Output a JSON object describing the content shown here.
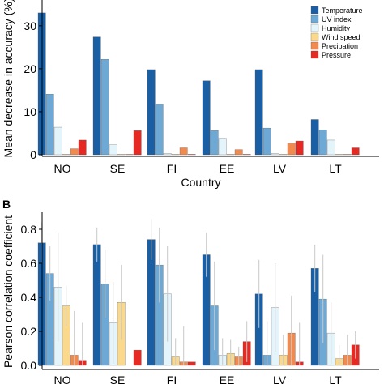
{
  "colors": {
    "Temperature": "#1a5fa3",
    "UV index": "#6ea9d5",
    "Humidity": "#e3f4fb",
    "Wind speed": "#fbd98c",
    "Precipation": "#f08a4f",
    "Pressure": "#e42a22"
  },
  "chart_data": [
    {
      "type": "bar",
      "panel": "",
      "categories": [
        "NO",
        "SE",
        "FI",
        "EE",
        "LV",
        "LT"
      ],
      "xlabel": "Country",
      "ylabel": "Mean decrease in accuracy (%)",
      "ylim": [
        0,
        36
      ],
      "yticks": [
        0,
        10,
        20,
        30
      ],
      "legend": "top-right",
      "grid": false,
      "series": [
        {
          "name": "Temperature",
          "values": [
            33.0,
            27.4,
            19.8,
            17.2,
            19.8,
            8.2
          ]
        },
        {
          "name": "UV index",
          "values": [
            14.1,
            22.2,
            11.8,
            5.6,
            6.2,
            5.8
          ]
        },
        {
          "name": "Humidity",
          "values": [
            6.4,
            2.3,
            0.3,
            3.8,
            0.3,
            3.4
          ]
        },
        {
          "name": "Wind speed",
          "values": [
            0.1,
            0.1,
            0.1,
            0.1,
            0.1,
            0.1
          ]
        },
        {
          "name": "Precipation",
          "values": [
            1.4,
            0.1,
            1.6,
            1.2,
            2.7,
            0.1
          ]
        },
        {
          "name": "Pressure",
          "values": [
            3.4,
            5.6,
            0.1,
            0.1,
            3.2,
            1.6
          ]
        }
      ]
    },
    {
      "type": "bar",
      "panel": "B",
      "categories": [
        "NO",
        "SE",
        "FI",
        "EE",
        "LV",
        "LT"
      ],
      "xlabel": "",
      "ylabel": "Pearson correlation coefficient",
      "ylim": [
        0,
        0.9
      ],
      "yticks": [
        "0.0",
        "0.2",
        "0.4",
        "0.6",
        "0.8"
      ],
      "grid": false,
      "error_bars": true,
      "series": [
        {
          "name": "Temperature",
          "values": [
            0.72,
            0.71,
            0.74,
            0.65,
            0.42,
            0.57
          ],
          "errors": [
            0.12,
            0.1,
            0.12,
            0.13,
            0.2,
            0.14
          ]
        },
        {
          "name": "UV index",
          "values": [
            0.54,
            0.48,
            0.59,
            0.35,
            0.06,
            0.39
          ],
          "errors": [
            0.16,
            0.2,
            0.22,
            0.26,
            0.2,
            0.26
          ]
        },
        {
          "name": "Humidity",
          "values": [
            0.46,
            0.25,
            0.42,
            0.06,
            0.34,
            0.19
          ],
          "errors": [
            0.32,
            0.24,
            0.28,
            0.1,
            0.26,
            0.18
          ]
        },
        {
          "name": "Wind speed",
          "values": [
            0.35,
            0.37,
            0.05,
            0.07,
            0.06,
            0.04
          ],
          "errors": [
            0.12,
            0.22,
            0.11,
            0.08,
            0.12,
            0.08
          ]
        },
        {
          "name": "Precipation",
          "values": [
            0.06,
            0.0,
            0.02,
            0.05,
            0.19,
            0.06
          ],
          "errors": [
            0.26,
            0.0,
            0.21,
            0.06,
            0.22,
            0.12
          ]
        },
        {
          "name": "Pressure",
          "values": [
            0.03,
            0.09,
            0.02,
            0.14,
            0.02,
            0.12
          ],
          "errors": [
            0.22,
            0.0,
            0.0,
            0.12,
            0.23,
            0.08
          ]
        }
      ]
    }
  ]
}
